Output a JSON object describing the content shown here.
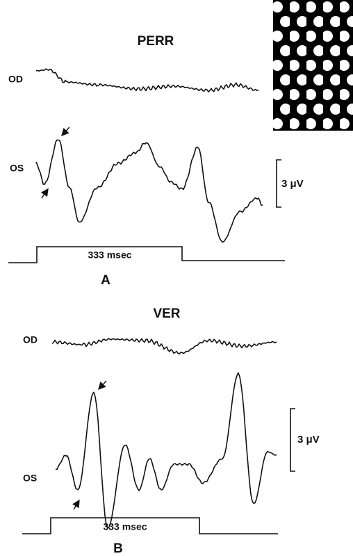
{
  "panels": [
    {
      "title": "PERR",
      "trace_labels": [
        "OD",
        "OS"
      ],
      "scale_bar": "3 μV",
      "stimulus": "333 msec",
      "panel_label": "A"
    },
    {
      "title": "VER",
      "trace_labels": [
        "OD",
        "OS"
      ],
      "scale_bar": "3 μV",
      "stimulus": "333 msec",
      "panel_label": "B"
    }
  ]
}
